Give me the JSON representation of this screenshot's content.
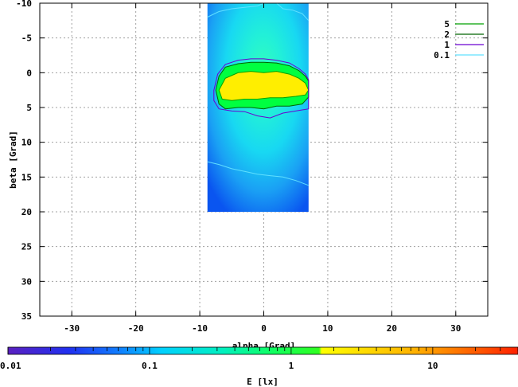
{
  "chart_data": {
    "type": "heatmap",
    "title": "",
    "xlabel": "alpha [Grad]",
    "ylabel": "beta [Grad]",
    "xlim": [
      -35,
      35
    ],
    "ylim": [
      -10,
      35
    ],
    "y_inverted": true,
    "x_ticks": [
      -30,
      -20,
      -10,
      0,
      10,
      20,
      30
    ],
    "y_ticks": [
      -10,
      -5,
      0,
      5,
      10,
      15,
      20,
      25,
      30,
      35
    ],
    "grid": true,
    "data_extent": {
      "x": [
        -8.8,
        7.0
      ],
      "y": [
        -10,
        20
      ]
    },
    "colorbar": {
      "label": "E [lx]",
      "scale": "log",
      "range": [
        0.01,
        40
      ],
      "tick_values": [
        0.01,
        0.1,
        1,
        10
      ],
      "tick_labels": [
        "0.01",
        "0.1",
        "1",
        "10"
      ],
      "color_bands": [
        {
          "from": 0.01,
          "to": 0.05,
          "color": "#0000ff"
        },
        {
          "from": 0.05,
          "to": 0.5,
          "color": "#00c8ff"
        },
        {
          "from": 0.5,
          "to": 2.5,
          "color": "#00ff40"
        },
        {
          "from": 2.5,
          "to": 10,
          "color": "#ffee00"
        },
        {
          "from": 10,
          "to": 40,
          "color": "#ff4000"
        }
      ]
    },
    "contours": [
      {
        "name": "5",
        "level": 5,
        "color": "#00a000",
        "points": [
          [
            -7,
            2.5
          ],
          [
            -6,
            0.8
          ],
          [
            -4,
            0
          ],
          [
            -2,
            -0.2
          ],
          [
            0,
            0
          ],
          [
            2,
            -0.2
          ],
          [
            4,
            0.2
          ],
          [
            5.5,
            0.8
          ],
          [
            6.5,
            1.5
          ],
          [
            7,
            2.5
          ],
          [
            6.5,
            3.2
          ],
          [
            5,
            3.4
          ],
          [
            3,
            3.6
          ],
          [
            1,
            3.6
          ],
          [
            -1,
            3.8
          ],
          [
            -3,
            3.8
          ],
          [
            -5,
            4.0
          ],
          [
            -6.5,
            3.8
          ],
          [
            -7,
            2.5
          ]
        ]
      },
      {
        "name": "2",
        "level": 2,
        "color": "#006400",
        "points": [
          [
            -7.5,
            2.5
          ],
          [
            -7,
            0.5
          ],
          [
            -6,
            -0.8
          ],
          [
            -4,
            -1.3
          ],
          [
            -2,
            -1.5
          ],
          [
            0,
            -1.5
          ],
          [
            2,
            -1.4
          ],
          [
            4,
            -1.0
          ],
          [
            5.5,
            -0.3
          ],
          [
            6.5,
            0.5
          ],
          [
            7,
            1.2
          ],
          [
            7,
            3.5
          ],
          [
            6,
            4.5
          ],
          [
            4,
            4.8
          ],
          [
            2,
            4.8
          ],
          [
            0,
            5.2
          ],
          [
            -2,
            5.0
          ],
          [
            -4,
            5.0
          ],
          [
            -6,
            5.2
          ],
          [
            -7,
            4.5
          ],
          [
            -7.5,
            2.5
          ]
        ]
      },
      {
        "name": "1",
        "level": 1,
        "color": "#6a00d0",
        "points": [
          [
            -7.8,
            2.5
          ],
          [
            -7.2,
            0.2
          ],
          [
            -6,
            -1.2
          ],
          [
            -4,
            -1.8
          ],
          [
            -2,
            -2.0
          ],
          [
            0,
            -2.0
          ],
          [
            2,
            -1.8
          ],
          [
            4,
            -1.4
          ],
          [
            5.5,
            -0.6
          ],
          [
            6.5,
            0.2
          ],
          [
            7,
            1.0
          ],
          [
            7,
            5.2
          ],
          [
            5,
            5.5
          ],
          [
            3,
            5.8
          ],
          [
            1,
            6.5
          ],
          [
            -1,
            6.2
          ],
          [
            -3,
            5.6
          ],
          [
            -5,
            5.5
          ],
          [
            -7,
            5.2
          ],
          [
            -7.8,
            4.0
          ],
          [
            -7.8,
            2.5
          ]
        ]
      },
      {
        "name": "0.1",
        "level": 0.1,
        "color": "#60e0ff",
        "points": [
          [
            -8.8,
            -8
          ],
          [
            -7,
            -8.8
          ],
          [
            -5,
            -9.2
          ],
          [
            -3,
            -9.4
          ],
          [
            -1,
            -9.6
          ],
          [
            0,
            -10
          ],
          [
            2,
            -10
          ],
          [
            3,
            -9.2
          ],
          [
            4.5,
            -9.0
          ],
          [
            6,
            -8.5
          ],
          [
            7,
            -7.5
          ]
        ]
      },
      {
        "name": "0.1-lower",
        "level": 0.1,
        "color": "#60e0ff",
        "points": [
          [
            -8.8,
            12.8
          ],
          [
            -7,
            13.2
          ],
          [
            -5,
            13.8
          ],
          [
            -3,
            14.2
          ],
          [
            -1,
            14.6
          ],
          [
            1,
            14.8
          ],
          [
            3,
            15.0
          ],
          [
            5,
            15.5
          ],
          [
            7,
            16.2
          ]
        ]
      }
    ],
    "legend": {
      "position": "top-right",
      "entries": [
        {
          "label": "5",
          "color": "#00a000"
        },
        {
          "label": "2",
          "color": "#006400"
        },
        {
          "label": "1",
          "color": "#6a00d0"
        },
        {
          "label": "0.1",
          "color": "#60e0ff"
        }
      ]
    }
  }
}
